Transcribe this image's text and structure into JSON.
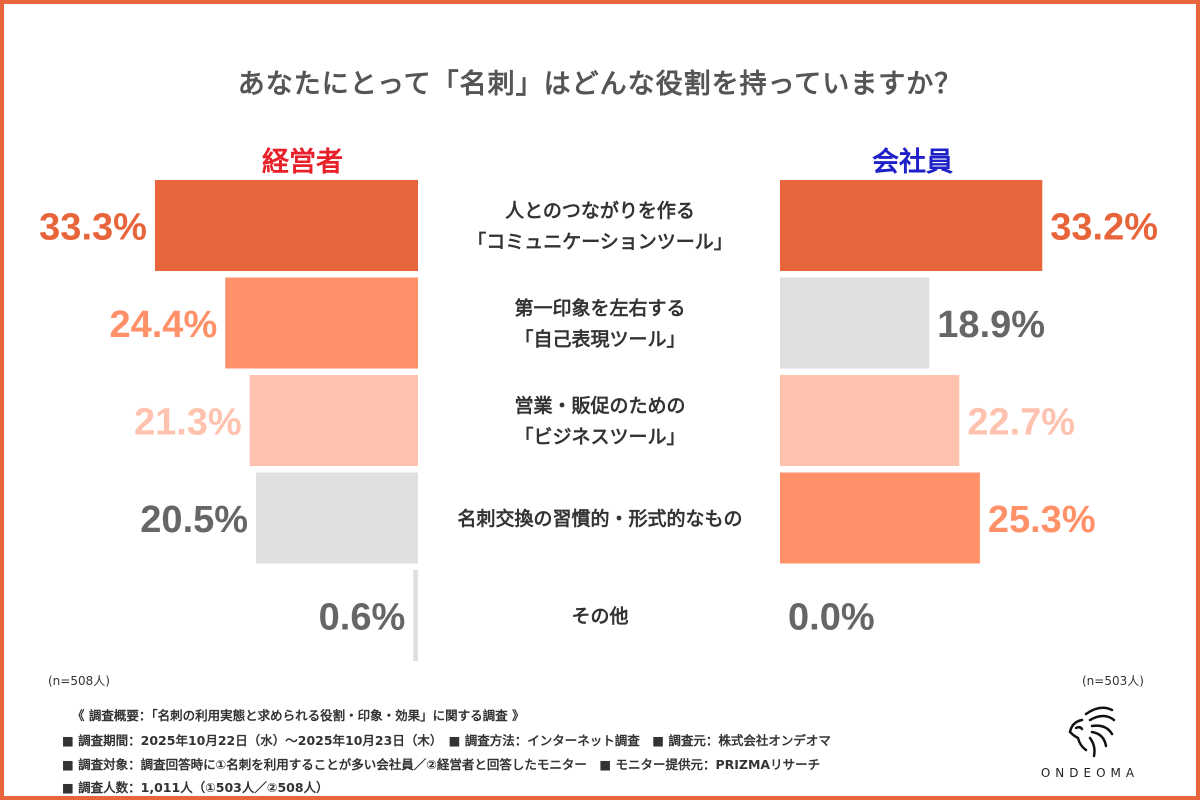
{
  "title": "あなたにとって「名刺」はどんな役割を持っていますか？",
  "colors": {
    "frame": "#E8643A",
    "rank1": "#E8643A",
    "rank2": "#FF9068",
    "rank3": "#FFC2AE",
    "other": "#E0DEDE",
    "other_text": "#666666",
    "exec_title": "#E8202A",
    "emp_title": "#2020C8"
  },
  "chart_data": {
    "type": "bar",
    "orientation": "horizontal-butterfly",
    "categories": [
      "人とのつながりを作る\n「コミュニケーションツール」",
      "第一印象を左右する\n「自己表現ツール」",
      "営業・販促のための\n「ビジネスツール」",
      "名刺交換の習慣的・形式的なもの",
      "その他"
    ],
    "series": [
      {
        "name": "経営者",
        "values": [
          33.3,
          24.4,
          21.3,
          20.5,
          0.6
        ],
        "labels": [
          "33.3%",
          "24.4%",
          "21.3%",
          "20.5%",
          "0.6%"
        ],
        "color_rank": [
          1,
          2,
          3,
          0,
          0
        ],
        "n": "(n=508人)"
      },
      {
        "name": "会社員",
        "values": [
          33.2,
          18.9,
          22.7,
          25.3,
          0.0
        ],
        "labels": [
          "33.2%",
          "18.9%",
          "22.7%",
          "25.3%",
          "0.0%"
        ],
        "color_rank": [
          1,
          0,
          3,
          2,
          0
        ],
        "n": "(n=503人)"
      }
    ],
    "unit": "%"
  },
  "footer": [
    "《 調査概要：「名刺の利用実態と求められる役割・印象・効果」に関する調査 》",
    "■ 調査期間：2025年10月22日（水）～2025年10月23日（木）　■ 調査方法：インターネット調査　■ 調査元：株式会社オンデオマ",
    "■ 調査対象：調査回答時に①名刺を利用することが多い会社員／②経営者と回答したモニター　■ モニター提供元：PRIZMAリサーチ",
    "■ 調査人数：1,011人（①503人／②508人）"
  ],
  "logo": {
    "text": "ONDEOMA",
    "icon": "lion-head-icon"
  }
}
